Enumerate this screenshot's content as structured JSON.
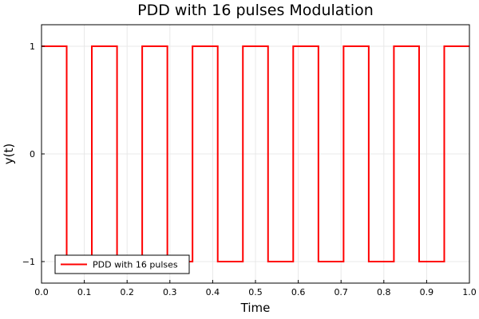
{
  "chart_data": {
    "type": "line",
    "title": "PDD with 16 pulses Modulation",
    "xlabel": "Time",
    "ylabel": "y(t)",
    "xlim": [
      0.0,
      1.0
    ],
    "ylim": [
      -1.2,
      1.2
    ],
    "x_ticks": [
      0.0,
      0.1,
      0.2,
      0.3,
      0.4,
      0.5,
      0.6,
      0.7,
      0.8,
      0.9,
      1.0
    ],
    "x_tick_labels": [
      "0.0",
      "0.1",
      "0.2",
      "0.3",
      "0.4",
      "0.5",
      "0.6",
      "0.7",
      "0.8",
      "0.9",
      "1.0"
    ],
    "y_ticks": [
      -1,
      0,
      1
    ],
    "y_tick_labels": [
      "−1",
      "0",
      "1"
    ],
    "grid": true,
    "legend_position": "bottom-left",
    "series": [
      {
        "name": "PDD with 16 pulses",
        "color": "#ff0000",
        "step": true,
        "x": [
          0.0,
          0.0588,
          0.1176,
          0.1765,
          0.2353,
          0.2941,
          0.3529,
          0.4118,
          0.4706,
          0.5294,
          0.5882,
          0.6471,
          0.7059,
          0.7647,
          0.8235,
          0.8824,
          0.9412,
          1.0
        ],
        "y": [
          1,
          -1,
          1,
          -1,
          1,
          -1,
          1,
          -1,
          1,
          -1,
          1,
          -1,
          1,
          -1,
          1,
          -1,
          1,
          1
        ]
      }
    ]
  }
}
